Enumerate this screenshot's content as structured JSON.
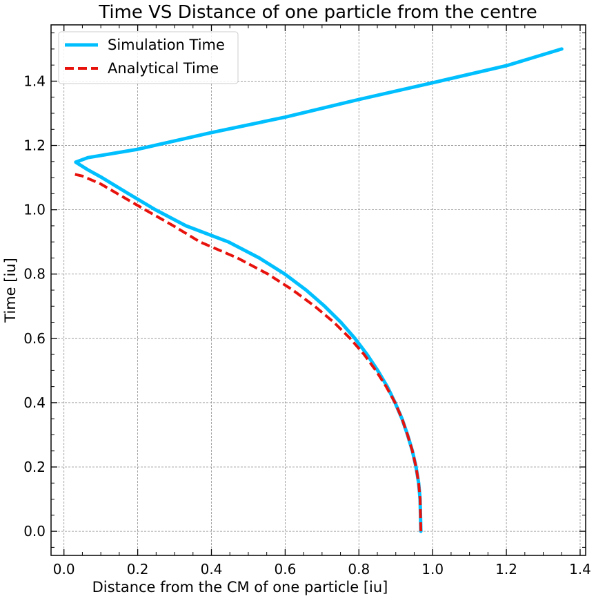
{
  "chart_data": {
    "type": "line",
    "title": "Time VS Distance of one particle from the centre",
    "xlabel": "Distance from the CM of one particle [iu]",
    "ylabel": "Time [iu]",
    "xlim": [
      -0.035,
      1.415
    ],
    "ylim": [
      -0.075,
      1.575
    ],
    "xticks": [
      0.0,
      0.2,
      0.4,
      0.6,
      0.8,
      1.0,
      1.2,
      1.4
    ],
    "xtick_labels": [
      "0.0",
      "0.2",
      "0.4",
      "0.6",
      "0.8",
      "1.0",
      "1.2",
      "1.4"
    ],
    "yticks": [
      0.0,
      0.2,
      0.4,
      0.6,
      0.8,
      1.0,
      1.2,
      1.4
    ],
    "ytick_labels": [
      "0.0",
      "0.2",
      "0.4",
      "0.6",
      "0.8",
      "1.0",
      "1.2",
      "1.4"
    ],
    "grid": true,
    "legend_position": "top-left",
    "series": [
      {
        "name": "Simulation Time",
        "color": "#00bfff",
        "style": "solid",
        "points": [
          [
            0.968,
            0.0
          ],
          [
            0.966,
            0.1
          ],
          [
            0.962,
            0.15
          ],
          [
            0.955,
            0.2
          ],
          [
            0.945,
            0.25
          ],
          [
            0.932,
            0.3
          ],
          [
            0.917,
            0.35
          ],
          [
            0.898,
            0.4
          ],
          [
            0.877,
            0.45
          ],
          [
            0.851,
            0.5
          ],
          [
            0.822,
            0.55
          ],
          [
            0.789,
            0.6
          ],
          [
            0.751,
            0.65
          ],
          [
            0.707,
            0.7
          ],
          [
            0.657,
            0.75
          ],
          [
            0.599,
            0.8
          ],
          [
            0.53,
            0.85
          ],
          [
            0.446,
            0.9
          ],
          [
            0.331,
            0.95
          ],
          [
            0.248,
            1.0
          ],
          [
            0.175,
            1.05
          ],
          [
            0.103,
            1.1
          ],
          [
            0.064,
            1.125
          ],
          [
            0.032,
            1.148
          ],
          [
            0.065,
            1.162
          ],
          [
            0.2,
            1.188
          ],
          [
            0.4,
            1.24
          ],
          [
            0.6,
            1.288
          ],
          [
            0.8,
            1.343
          ],
          [
            1.0,
            1.395
          ],
          [
            1.2,
            1.448
          ],
          [
            1.35,
            1.5
          ]
        ]
      },
      {
        "name": "Analytical Time",
        "color": "#e8120c",
        "style": "dashed",
        "points": [
          [
            0.968,
            0.0
          ],
          [
            0.966,
            0.1
          ],
          [
            0.962,
            0.15
          ],
          [
            0.955,
            0.2
          ],
          [
            0.945,
            0.25
          ],
          [
            0.932,
            0.3
          ],
          [
            0.917,
            0.35
          ],
          [
            0.898,
            0.4
          ],
          [
            0.874,
            0.45
          ],
          [
            0.846,
            0.5
          ],
          [
            0.814,
            0.55
          ],
          [
            0.776,
            0.6
          ],
          [
            0.732,
            0.65
          ],
          [
            0.68,
            0.7
          ],
          [
            0.621,
            0.75
          ],
          [
            0.553,
            0.8
          ],
          [
            0.471,
            0.85
          ],
          [
            0.369,
            0.9
          ],
          [
            0.297,
            0.95
          ],
          [
            0.22,
            1.0
          ],
          [
            0.16,
            1.04
          ],
          [
            0.1,
            1.08
          ],
          [
            0.05,
            1.105
          ],
          [
            0.03,
            1.11
          ]
        ]
      }
    ]
  }
}
